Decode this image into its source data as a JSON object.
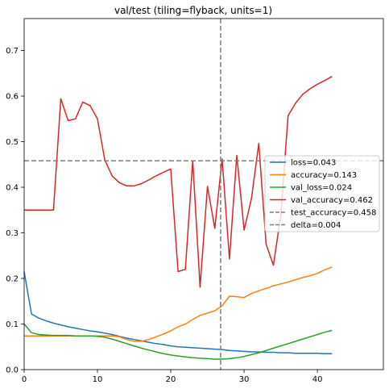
{
  "chart_data": {
    "type": "line",
    "title": "val/test (tiling=flyback, units=1)",
    "xlabel": "",
    "ylabel": "",
    "xlim": [
      0,
      49
    ],
    "ylim": [
      0,
      0.77
    ],
    "xticks": [
      0,
      10,
      20,
      30,
      40
    ],
    "yticks": [
      0.0,
      0.1,
      0.2,
      0.3,
      0.4,
      0.5,
      0.6,
      0.7
    ],
    "grid": false,
    "legend_position": "center-right",
    "series": [
      {
        "name": "loss=0.043",
        "color": "#1f77b4",
        "style": "solid",
        "x": [
          0,
          1,
          2,
          3,
          4,
          5,
          6,
          7,
          8,
          9,
          10,
          11,
          12,
          13,
          14,
          15,
          16,
          17,
          18,
          19,
          20,
          21,
          22,
          23,
          24,
          25,
          26,
          27,
          28,
          29,
          30,
          31,
          32,
          33,
          34,
          35,
          36,
          37,
          38,
          39,
          40,
          41,
          42
        ],
        "y": [
          0.215,
          0.122,
          0.113,
          0.107,
          0.102,
          0.098,
          0.094,
          0.091,
          0.088,
          0.085,
          0.083,
          0.08,
          0.077,
          0.073,
          0.069,
          0.066,
          0.063,
          0.06,
          0.057,
          0.055,
          0.052,
          0.05,
          0.049,
          0.048,
          0.047,
          0.046,
          0.045,
          0.044,
          0.042,
          0.041,
          0.04,
          0.039,
          0.039,
          0.038,
          0.038,
          0.037,
          0.037,
          0.036,
          0.036,
          0.036,
          0.036,
          0.035,
          0.035
        ]
      },
      {
        "name": "accuracy=0.143",
        "color": "#ff7f0e",
        "style": "solid",
        "x": [
          0,
          1,
          2,
          3,
          4,
          5,
          6,
          7,
          8,
          9,
          10,
          11,
          12,
          13,
          14,
          15,
          16,
          17,
          18,
          19,
          20,
          21,
          22,
          23,
          24,
          25,
          26,
          27,
          28,
          29,
          30,
          31,
          32,
          33,
          34,
          35,
          36,
          37,
          38,
          39,
          40,
          41,
          42
        ],
        "y": [
          0.074,
          0.074,
          0.074,
          0.074,
          0.074,
          0.074,
          0.074,
          0.074,
          0.074,
          0.074,
          0.074,
          0.074,
          0.074,
          0.072,
          0.066,
          0.062,
          0.062,
          0.066,
          0.072,
          0.078,
          0.085,
          0.094,
          0.1,
          0.11,
          0.119,
          0.124,
          0.129,
          0.14,
          0.161,
          0.16,
          0.158,
          0.167,
          0.173,
          0.178,
          0.184,
          0.188,
          0.192,
          0.197,
          0.202,
          0.206,
          0.211,
          0.219,
          0.225
        ]
      },
      {
        "name": "val_loss=0.024",
        "color": "#2ca02c",
        "style": "solid",
        "x": [
          0,
          1,
          2,
          3,
          4,
          5,
          6,
          7,
          8,
          9,
          10,
          11,
          12,
          13,
          14,
          15,
          16,
          17,
          18,
          19,
          20,
          21,
          22,
          23,
          24,
          25,
          26,
          27,
          28,
          29,
          30,
          31,
          32,
          33,
          34,
          35,
          36,
          37,
          38,
          39,
          40,
          41,
          42
        ],
        "y": [
          0.1,
          0.081,
          0.077,
          0.076,
          0.075,
          0.075,
          0.075,
          0.074,
          0.074,
          0.074,
          0.073,
          0.071,
          0.067,
          0.062,
          0.057,
          0.052,
          0.047,
          0.043,
          0.039,
          0.035,
          0.032,
          0.03,
          0.028,
          0.026,
          0.025,
          0.024,
          0.023,
          0.023,
          0.024,
          0.026,
          0.029,
          0.033,
          0.037,
          0.042,
          0.047,
          0.052,
          0.057,
          0.062,
          0.067,
          0.072,
          0.077,
          0.082,
          0.086
        ]
      },
      {
        "name": "val_accuracy=0.462",
        "color": "#d62728",
        "style": "solid",
        "x": [
          0,
          1,
          2,
          3,
          4,
          5,
          6,
          7,
          8,
          9,
          10,
          11,
          12,
          13,
          14,
          15,
          16,
          17,
          18,
          19,
          20,
          21,
          22,
          23,
          24,
          25,
          26,
          27,
          28,
          29,
          30,
          31,
          32,
          33,
          34,
          35,
          36,
          37,
          38,
          39,
          40,
          41,
          42
        ],
        "y": [
          0.35,
          0.35,
          0.35,
          0.35,
          0.35,
          0.594,
          0.546,
          0.55,
          0.587,
          0.579,
          0.55,
          0.46,
          0.425,
          0.41,
          0.403,
          0.403,
          0.408,
          0.416,
          0.425,
          0.433,
          0.44,
          0.215,
          0.22,
          0.458,
          0.181,
          0.402,
          0.31,
          0.462,
          0.243,
          0.47,
          0.306,
          0.375,
          0.496,
          0.275,
          0.229,
          0.338,
          0.557,
          0.584,
          0.604,
          0.616,
          0.626,
          0.634,
          0.643
        ]
      },
      {
        "name": "test_accuracy=0.458",
        "color": "#7f7f7f",
        "style": "dashed",
        "orientation": "horizontal",
        "value": 0.458
      },
      {
        "name": "delta=0.004",
        "color": "#7f7f7f",
        "style": "dashed",
        "orientation": "vertical",
        "value": 26.8
      }
    ]
  }
}
